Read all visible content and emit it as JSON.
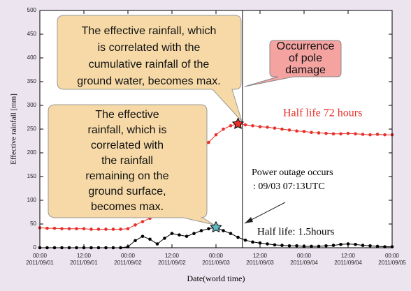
{
  "chart_data": {
    "type": "line",
    "ylabel": "Effective rainfall [mm]",
    "xlabel": "Date(world time)",
    "x": [
      "2011-09-01T00:00",
      "2011-09-01T02:00",
      "2011-09-01T04:00",
      "2011-09-01T06:00",
      "2011-09-01T08:00",
      "2011-09-01T10:00",
      "2011-09-01T12:00",
      "2011-09-01T14:00",
      "2011-09-01T16:00",
      "2011-09-01T18:00",
      "2011-09-01T20:00",
      "2011-09-01T22:00",
      "2011-09-02T00:00",
      "2011-09-02T02:00",
      "2011-09-02T04:00",
      "2011-09-02T06:00",
      "2011-09-02T08:00",
      "2011-09-02T10:00",
      "2011-09-02T12:00",
      "2011-09-02T14:00",
      "2011-09-02T16:00",
      "2011-09-02T18:00",
      "2011-09-02T20:00",
      "2011-09-02T22:00",
      "2011-09-03T00:00",
      "2011-09-03T02:00",
      "2011-09-03T04:00",
      "2011-09-03T06:00",
      "2011-09-03T08:00",
      "2011-09-03T10:00",
      "2011-09-03T12:00",
      "2011-09-03T14:00",
      "2011-09-03T16:00",
      "2011-09-03T18:00",
      "2011-09-03T20:00",
      "2011-09-03T22:00",
      "2011-09-04T00:00",
      "2011-09-04T02:00",
      "2011-09-04T04:00",
      "2011-09-04T06:00",
      "2011-09-04T08:00",
      "2011-09-04T10:00",
      "2011-09-04T12:00",
      "2011-09-04T14:00",
      "2011-09-04T16:00",
      "2011-09-04T18:00",
      "2011-09-04T20:00",
      "2011-09-04T22:00",
      "2011-09-05T00:00"
    ],
    "series": [
      {
        "name": "Half  life 72 hours",
        "color": "#e8302a",
        "max_marker_color": "#e8302a",
        "values": [
          42,
          41,
          41,
          40,
          40,
          40,
          40,
          39,
          39,
          39,
          39,
          39,
          40,
          48,
          55,
          62,
          75,
          95,
          118,
          140,
          162,
          185,
          205,
          222,
          238,
          250,
          257,
          261,
          259,
          257,
          255,
          254,
          252,
          250,
          248,
          246,
          245,
          243,
          242,
          241,
          240,
          240,
          241,
          240,
          239,
          238,
          239,
          238,
          238
        ]
      },
      {
        "name": "Half  life:  1.5hours",
        "color": "#000000",
        "max_marker_color": "#5fb8c0",
        "values": [
          0,
          0,
          0,
          0,
          0,
          0,
          0,
          0,
          0,
          0,
          0,
          0,
          2,
          15,
          24,
          18,
          8,
          20,
          30,
          27,
          24,
          30,
          36,
          40,
          43,
          36,
          30,
          22,
          16,
          12,
          10,
          8,
          6,
          5,
          4,
          4,
          3,
          3,
          3,
          4,
          5,
          7,
          8,
          7,
          5,
          4,
          3,
          2,
          2
        ]
      }
    ],
    "xlim": [
      "2011-09-01T00:00",
      "2011-09-05T00:00"
    ],
    "xticks": [
      {
        "value": "2011-09-01T00:00",
        "label": [
          "00:00",
          "2011/09/01"
        ]
      },
      {
        "value": "2011-09-01T12:00",
        "label": [
          "12:00",
          "2011/09/01"
        ]
      },
      {
        "value": "2011-09-02T00:00",
        "label": [
          "00:00",
          "2011/09/02"
        ]
      },
      {
        "value": "2011-09-02T12:00",
        "label": [
          "12:00",
          "2011/09/02"
        ]
      },
      {
        "value": "2011-09-03T00:00",
        "label": [
          "00:00",
          "2011/09/03"
        ]
      },
      {
        "value": "2011-09-03T12:00",
        "label": [
          "12:00",
          "2011/09/03"
        ]
      },
      {
        "value": "2011-09-04T00:00",
        "label": [
          "00:00",
          "2011/09/04"
        ]
      },
      {
        "value": "2011-09-04T12:00",
        "label": [
          "12:00",
          "2011/09/04"
        ]
      },
      {
        "value": "2011-09-05T00:00",
        "label": [
          "00:00",
          "2011/09/05"
        ]
      }
    ],
    "ylim": [
      0,
      500
    ],
    "yticks": [
      0,
      50,
      100,
      150,
      200,
      250,
      300,
      350,
      400,
      450,
      500
    ],
    "event_line": "2011-09-03T07:13"
  },
  "annotations": {
    "callouts": [
      {
        "lines": [
          "The effective rainfall, which",
          "is correlated with  the",
          "cumulative rainfall of the",
          "ground water, becomes max."
        ]
      },
      {
        "lines": [
          "The effective",
          "rainfall, which is",
          "correlated with",
          "the rainfall",
          "remaining on the",
          "ground surface,",
          "becomes max."
        ]
      },
      {
        "lines": [
          "Occurrence",
          "of pole",
          "damage"
        ]
      }
    ],
    "outage": [
      "Power  outage occurs",
      ": 09/03 07:13UTC"
    ]
  }
}
